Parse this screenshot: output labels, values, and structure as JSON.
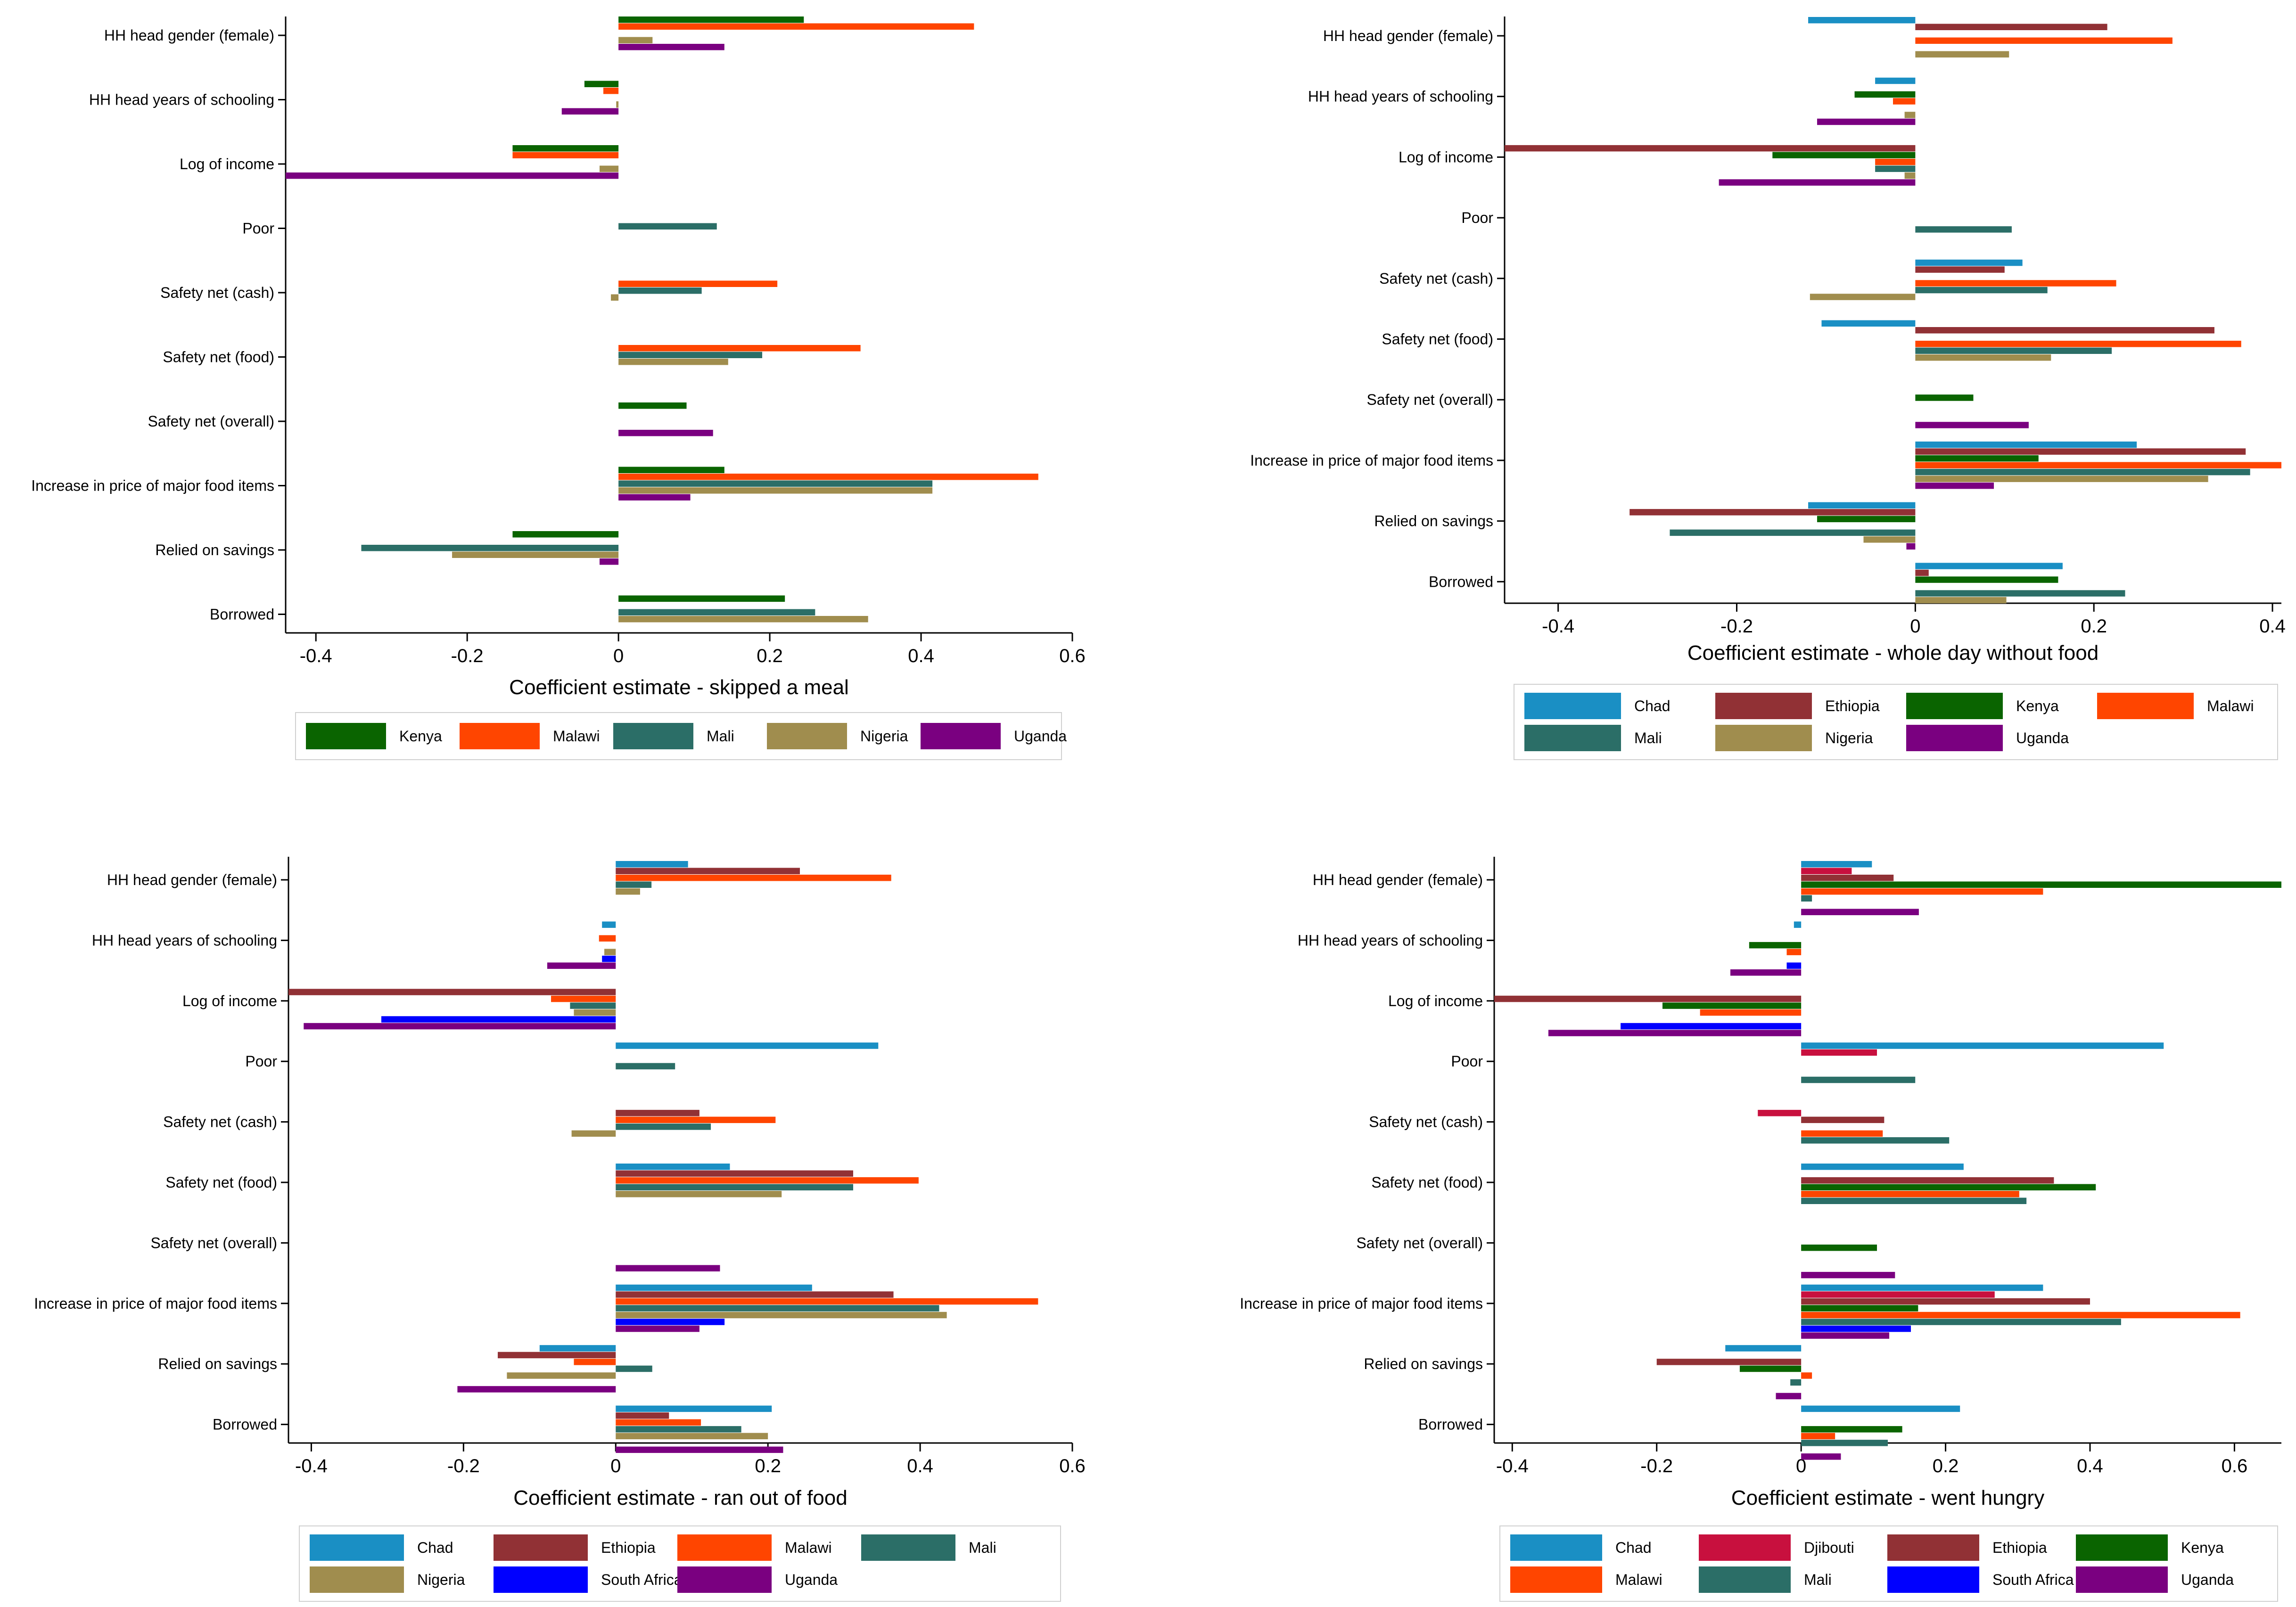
{
  "colors": {
    "Chad": "#1a8fc4",
    "Djibouti": "#c8103e",
    "Ethiopia": "#913135",
    "Kenya": "#0a6400",
    "Malawi": "#ff4500",
    "Mali": "#2b6e67",
    "Nigeria": "#a08d4e",
    "South Africa": "#0000ff",
    "Uganda": "#7a0080"
  },
  "chart_data": [
    {
      "type": "bar",
      "orientation": "horizontal",
      "title": "",
      "xlabel": "Coefficient estimate - skipped a meal",
      "ylabel": "",
      "xlim": [
        -0.44,
        0.6
      ],
      "xticks": [
        -0.4,
        -0.2,
        0,
        0.2,
        0.4,
        0.6
      ],
      "xtick_labels": [
        "-0.4",
        "-0.2",
        "0",
        "0.2",
        "0.4",
        "0.6"
      ],
      "grid": false,
      "legend_position": "bottom",
      "categories": [
        "HH head gender (female)",
        "HH head years of schooling",
        "Log of income",
        "Poor",
        "Safety net (cash)",
        "Safety net (food)",
        "Safety net (overall)",
        "Increase in price of major food items",
        "Relied on savings",
        "Borrowed"
      ],
      "legend": [
        "Kenya",
        "Malawi",
        "Mali",
        "Nigeria",
        "Uganda"
      ],
      "series": [
        {
          "name": "Kenya",
          "values": [
            0.245,
            -0.045,
            -0.14,
            null,
            null,
            null,
            0.09,
            0.14,
            -0.14,
            0.22
          ]
        },
        {
          "name": "Malawi",
          "values": [
            0.47,
            -0.02,
            -0.14,
            null,
            0.21,
            0.32,
            null,
            0.555,
            null,
            null
          ]
        },
        {
          "name": "Mali",
          "values": [
            null,
            null,
            null,
            0.13,
            0.11,
            0.19,
            null,
            0.415,
            -0.34,
            0.26
          ]
        },
        {
          "name": "Nigeria",
          "values": [
            0.045,
            -0.003,
            -0.025,
            null,
            -0.01,
            0.145,
            null,
            0.415,
            -0.22,
            0.33
          ]
        },
        {
          "name": "Uganda",
          "values": [
            0.14,
            -0.075,
            -0.45,
            null,
            null,
            null,
            0.125,
            0.095,
            -0.025,
            null
          ]
        }
      ]
    },
    {
      "type": "bar",
      "orientation": "horizontal",
      "title": "",
      "xlabel": "Coefficient estimate - whole day without food",
      "ylabel": "",
      "xlim": [
        -0.46,
        0.41
      ],
      "xticks": [
        -0.4,
        -0.2,
        0,
        0.2,
        0.4
      ],
      "xtick_labels": [
        "-0.4",
        "-0.2",
        "0",
        "0.2",
        "0.4"
      ],
      "grid": false,
      "legend_position": "bottom",
      "categories": [
        "HH head gender (female)",
        "HH head years of schooling",
        "Log of income",
        "Poor",
        "Safety net (cash)",
        "Safety net (food)",
        "Safety net (overall)",
        "Increase in price of major food items",
        "Relied on savings",
        "Borrowed"
      ],
      "legend": [
        "Chad",
        "Ethiopia",
        "Kenya",
        "Malawi",
        "Mali",
        "Nigeria",
        "Uganda"
      ],
      "series": [
        {
          "name": "Chad",
          "values": [
            -0.12,
            -0.045,
            null,
            null,
            0.12,
            -0.105,
            null,
            0.248,
            -0.12,
            0.165
          ]
        },
        {
          "name": "Ethiopia",
          "values": [
            0.215,
            null,
            -0.47,
            null,
            0.1,
            0.335,
            null,
            0.37,
            -0.32,
            0.015
          ]
        },
        {
          "name": "Kenya",
          "values": [
            null,
            -0.068,
            -0.16,
            null,
            null,
            null,
            0.065,
            0.138,
            -0.11,
            0.16
          ]
        },
        {
          "name": "Malawi",
          "values": [
            0.288,
            -0.025,
            -0.045,
            null,
            0.225,
            0.365,
            null,
            0.41,
            null,
            null
          ]
        },
        {
          "name": "Mali",
          "values": [
            null,
            null,
            -0.045,
            0.108,
            0.148,
            0.22,
            null,
            0.375,
            -0.275,
            0.235
          ]
        },
        {
          "name": "Nigeria",
          "values": [
            0.105,
            -0.012,
            -0.012,
            null,
            -0.118,
            0.152,
            null,
            0.328,
            -0.058,
            0.102
          ]
        },
        {
          "name": "Uganda",
          "values": [
            null,
            -0.11,
            -0.22,
            null,
            null,
            null,
            0.127,
            0.088,
            -0.01,
            null
          ]
        }
      ]
    },
    {
      "type": "bar",
      "orientation": "horizontal",
      "title": "",
      "xlabel": "Coefficient estimate - ran out of food",
      "ylabel": "",
      "xlim": [
        -0.43,
        0.6
      ],
      "xticks": [
        -0.4,
        -0.2,
        0,
        0.2,
        0.4,
        0.6
      ],
      "xtick_labels": [
        "-0.4",
        "-0.2",
        "0",
        "0.2",
        "0.4",
        "0.6"
      ],
      "grid": false,
      "legend_position": "bottom",
      "categories": [
        "HH head gender (female)",
        "HH head years of schooling",
        "Log of income",
        "Poor",
        "Safety net (cash)",
        "Safety net (food)",
        "Safety net (overall)",
        "Increase in price of major food items",
        "Relied on savings",
        "Borrowed"
      ],
      "legend": [
        "Chad",
        "Ethiopia",
        "Malawi",
        "Mali",
        "Nigeria",
        "South Africa",
        "Uganda"
      ],
      "series": [
        {
          "name": "Chad",
          "values": [
            0.095,
            -0.018,
            null,
            0.345,
            null,
            0.15,
            null,
            0.258,
            -0.1,
            0.205
          ]
        },
        {
          "name": "Ethiopia",
          "values": [
            0.242,
            null,
            -0.45,
            null,
            0.11,
            0.312,
            null,
            0.365,
            -0.155,
            0.07
          ]
        },
        {
          "name": "Malawi",
          "values": [
            0.362,
            -0.022,
            -0.085,
            null,
            0.21,
            0.398,
            null,
            0.555,
            -0.055,
            0.112
          ]
        },
        {
          "name": "Mali",
          "values": [
            0.047,
            null,
            -0.06,
            0.078,
            0.125,
            0.312,
            null,
            0.425,
            0.048,
            0.165
          ]
        },
        {
          "name": "Nigeria",
          "values": [
            0.032,
            -0.015,
            -0.055,
            null,
            -0.058,
            0.218,
            null,
            0.435,
            -0.143,
            0.2
          ]
        },
        {
          "name": "South Africa",
          "values": [
            null,
            -0.018,
            -0.308,
            null,
            null,
            null,
            null,
            0.143,
            null,
            null
          ]
        },
        {
          "name": "Uganda",
          "values": [
            null,
            -0.09,
            -0.41,
            null,
            null,
            null,
            0.137,
            0.11,
            -0.208,
            0.22
          ]
        }
      ]
    },
    {
      "type": "bar",
      "orientation": "horizontal",
      "title": "",
      "xlabel": "Coefficient estimate - went hungry",
      "ylabel": "",
      "xlim": [
        -0.425,
        0.665
      ],
      "xticks": [
        -0.4,
        -0.2,
        0,
        0.2,
        0.4,
        0.6
      ],
      "xtick_labels": [
        "-0.4",
        "-0.2",
        "0",
        "0.2",
        "0.4",
        "0.6"
      ],
      "grid": false,
      "legend_position": "bottom",
      "categories": [
        "HH head gender (female)",
        "HH head years of schooling",
        "Log of income",
        "Poor",
        "Safety net (cash)",
        "Safety net (food)",
        "Safety net (overall)",
        "Increase in price of major food items",
        "Relied on savings",
        "Borrowed"
      ],
      "legend": [
        "Chad",
        "Djibouti",
        "Ethiopia",
        "Kenya",
        "Malawi",
        "Mali",
        "South Africa",
        "Uganda"
      ],
      "series": [
        {
          "name": "Chad",
          "values": [
            0.098,
            -0.01,
            null,
            0.502,
            null,
            0.225,
            null,
            0.335,
            -0.105,
            0.22
          ]
        },
        {
          "name": "Djibouti",
          "values": [
            0.07,
            null,
            null,
            0.105,
            -0.06,
            null,
            null,
            0.268,
            null,
            null
          ]
        },
        {
          "name": "Ethiopia",
          "values": [
            0.128,
            null,
            -0.43,
            null,
            0.115,
            0.35,
            null,
            0.4,
            -0.2,
            null
          ]
        },
        {
          "name": "Kenya",
          "values": [
            0.665,
            -0.072,
            -0.192,
            null,
            null,
            0.408,
            0.105,
            0.162,
            -0.085,
            0.14
          ]
        },
        {
          "name": "Malawi",
          "values": [
            0.335,
            -0.02,
            -0.14,
            null,
            0.113,
            0.302,
            null,
            0.608,
            0.015,
            0.047
          ]
        },
        {
          "name": "Mali",
          "values": [
            0.015,
            null,
            null,
            0.158,
            0.205,
            0.312,
            null,
            0.443,
            -0.015,
            0.12
          ]
        },
        {
          "name": "South Africa",
          "values": [
            null,
            -0.02,
            -0.25,
            null,
            null,
            null,
            null,
            0.152,
            null,
            null
          ]
        },
        {
          "name": "Uganda",
          "values": [
            0.163,
            -0.098,
            -0.35,
            null,
            null,
            null,
            0.13,
            0.122,
            -0.035,
            0.055
          ]
        }
      ]
    }
  ]
}
